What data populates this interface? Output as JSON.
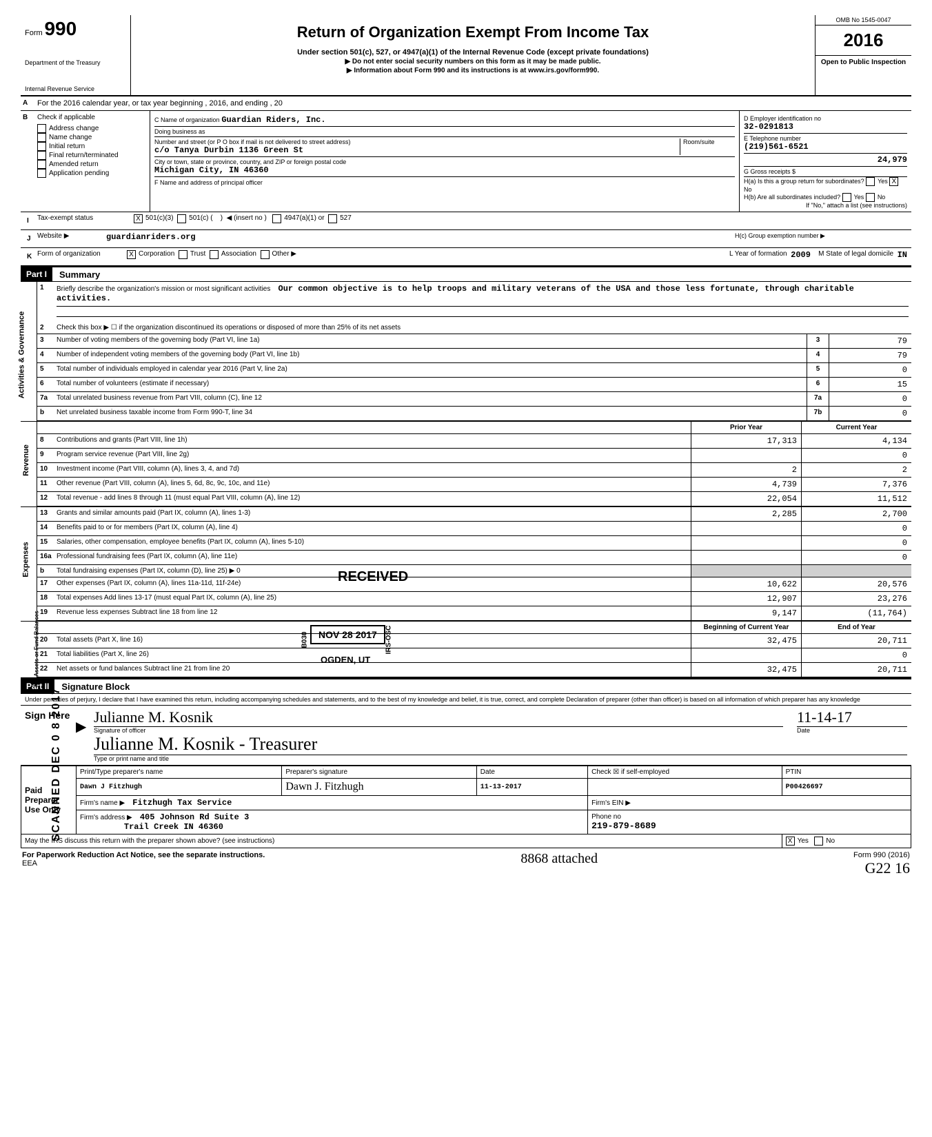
{
  "header": {
    "form_label": "Form",
    "form_number": "990",
    "dept": "Department of the Treasury",
    "irs": "Internal Revenue Service",
    "title": "Return of Organization Exempt From Income Tax",
    "sub1": "Under section 501(c), 527, or 4947(a)(1) of the Internal Revenue Code (except private foundations)",
    "sub2": "▶ Do not enter social security numbers on this form as it may be made public.",
    "sub3": "▶ Information about Form 990 and its instructions is at www.irs.gov/form990.",
    "omb": "OMB No 1545-0047",
    "year": "2016",
    "open": "Open to Public Inspection"
  },
  "line_a": "For the 2016 calendar year, or tax year beginning                                                    , 2016, and ending                               , 20",
  "section_b": {
    "label": "Check if applicable",
    "items": [
      "Address change",
      "Name change",
      "Initial return",
      "Final return/terminated",
      "Amended return",
      "Application pending"
    ]
  },
  "section_c": {
    "name_lbl": "C  Name of organization",
    "name": "Guardian Riders, Inc.",
    "dba_lbl": "Doing business as",
    "addr_lbl": "Number and street (or P O  box if mail is not delivered to street address)",
    "room_lbl": "Room/suite",
    "addr": "c/o Tanya Durbin 1136 Green St",
    "city_lbl": "City or town, state or province, country, and ZIP or foreign postal code",
    "city": "Michigan City, IN 46360",
    "officer_lbl": "F  Name and address of principal officer"
  },
  "section_d": {
    "lbl": "D  Employer identification no",
    "val": "32-0291813",
    "e_lbl": "E  Telephone number",
    "e_val": "(219)561-6521",
    "gross_val": "24,979",
    "g_lbl": "G  Gross receipts $"
  },
  "section_h": {
    "ha": "H(a) Is this a group return for subordinates?",
    "hb": "H(b) Are all subordinates included?",
    "hb_note": "If \"No,\" attach a list (see instructions)",
    "hc": "H(c)  Group exemption number  ▶",
    "yes": "Yes",
    "no": "No"
  },
  "line_i": {
    "lbl": "Tax-exempt status",
    "opt1": "501(c)(3)",
    "opt2": "501(c) (",
    "insert": "◀  (insert no )",
    "opt3": "4947(a)(1) or",
    "opt4": "527"
  },
  "line_j": {
    "lbl": "Website  ▶",
    "val": "guardianriders.org"
  },
  "line_k": {
    "lbl": "Form of organization",
    "opts": [
      "Corporation",
      "Trust",
      "Association",
      "Other ▶"
    ],
    "yof_lbl": "L  Year of formation",
    "yof": "2009",
    "dom_lbl": "M  State of legal domicile",
    "dom": "IN"
  },
  "part1": {
    "bar": "Part I",
    "title": "Summary",
    "mission_lbl": "Briefly describe the organization's mission or most significant activities",
    "mission": "Our common objective is to help troops and military veterans of the USA and those less fortunate, through charitable activities.",
    "line2": "Check this box ▶ ☐ if the organization discontinued its operations or disposed of more than 25% of its net assets",
    "gov_lines": [
      {
        "n": "3",
        "d": "Number of voting members of the governing body (Part VI, line 1a)",
        "b": "3",
        "v": "79"
      },
      {
        "n": "4",
        "d": "Number of independent voting members of the governing body (Part VI, line 1b)",
        "b": "4",
        "v": "79"
      },
      {
        "n": "5",
        "d": "Total number of individuals employed in calendar year 2016 (Part V, line 2a)",
        "b": "5",
        "v": "0"
      },
      {
        "n": "6",
        "d": "Total number of volunteers (estimate if necessary)",
        "b": "6",
        "v": "15"
      },
      {
        "n": "7a",
        "d": "Total unrelated business revenue from Part VIII, column (C), line 12",
        "b": "7a",
        "v": "0"
      },
      {
        "n": "b",
        "d": "Net unrelated business taxable income from Form 990-T, line 34",
        "b": "7b",
        "v": "0"
      }
    ],
    "col_prior": "Prior Year",
    "col_curr": "Current Year",
    "rev_lines": [
      {
        "n": "8",
        "d": "Contributions and grants (Part VIII, line 1h)",
        "p": "17,313",
        "c": "4,134"
      },
      {
        "n": "9",
        "d": "Program service revenue (Part VIII, line 2g)",
        "p": "",
        "c": "0"
      },
      {
        "n": "10",
        "d": "Investment income (Part VIII, column (A), lines 3, 4, and 7d)",
        "p": "2",
        "c": "2"
      },
      {
        "n": "11",
        "d": "Other revenue (Part VIII, column (A), lines 5, 6d, 8c, 9c, 10c, and 11e)",
        "p": "4,739",
        "c": "7,376"
      },
      {
        "n": "12",
        "d": "Total revenue - add lines 8 through 11 (must equal Part VIII, column (A), line 12)",
        "p": "22,054",
        "c": "11,512"
      }
    ],
    "exp_lines": [
      {
        "n": "13",
        "d": "Grants and similar amounts paid (Part IX, column (A), lines 1-3)",
        "p": "2,285",
        "c": "2,700"
      },
      {
        "n": "14",
        "d": "Benefits paid to or for members (Part IX, column (A), line 4)",
        "p": "",
        "c": "0"
      },
      {
        "n": "15",
        "d": "Salaries, other compensation, employee benefits (Part IX, column (A), lines 5-10)",
        "p": "",
        "c": "0"
      },
      {
        "n": "16a",
        "d": "Professional fundraising fees (Part IX, column (A), line 11e)",
        "p": "",
        "c": "0"
      },
      {
        "n": "b",
        "d": "Total fundraising expenses (Part IX, column (D), line 25)  ▶                                     0",
        "p": "",
        "c": "",
        "shade": true
      },
      {
        "n": "17",
        "d": "Other expenses (Part IX, column (A), lines 11a-11d, 11f-24e)",
        "p": "10,622",
        "c": "20,576"
      },
      {
        "n": "18",
        "d": "Total expenses   Add lines 13-17 (must equal Part IX, column (A), line 25)",
        "p": "12,907",
        "c": "23,276"
      },
      {
        "n": "19",
        "d": "Revenue less expenses   Subtract line 18 from line 12",
        "p": "9,147",
        "c": "(11,764)"
      }
    ],
    "col_boy": "Beginning of Current Year",
    "col_eoy": "End of Year",
    "na_lines": [
      {
        "n": "20",
        "d": "Total assets (Part X, line 16)",
        "p": "32,475",
        "c": "20,711"
      },
      {
        "n": "21",
        "d": "Total liabilities (Part X, line 26)",
        "p": "",
        "c": "0"
      },
      {
        "n": "22",
        "d": "Net assets or fund balances   Subtract line 21 from line 20",
        "p": "32,475",
        "c": "20,711"
      }
    ],
    "vside_gov": "Activities & Governance",
    "vside_rev": "Revenue",
    "vside_exp": "Expenses",
    "vside_na": "Net Assets or\nFund Balances"
  },
  "part2": {
    "bar": "Part II",
    "title": "Signature Block",
    "pen": "Under penalties of perjury, I declare that I have examined this return, including accompanying schedules and statements, and to the best of my knowledge and belief, it is true, correct, and complete  Declaration of preparer (other than officer) is based on all information of which preparer has any knowledge",
    "sign_here": "Sign Here",
    "sig_name": "Julianne M. Kosnik",
    "sig_title": "Julianne M. Kosnik - Treasurer",
    "sig_date": "11-14-17",
    "sig_of": "Signature of officer",
    "type_lbl": "Type or print name and title",
    "date_lbl": "Date"
  },
  "paid": {
    "side": "Paid Preparer Use Only",
    "h1": "Print/Type preparer's name",
    "h2": "Preparer's signature",
    "h3": "Date",
    "h4": "Check ☒ if self-employed",
    "h5": "PTIN",
    "name": "Dawn J Fitzhugh",
    "sig": "Dawn J. Fitzhugh",
    "date": "11-13-2017",
    "ptin": "P00426697",
    "firm_lbl": "Firm's name  ▶",
    "firm": "Fitzhugh Tax Service",
    "ein_lbl": "Firm's EIN ▶",
    "addr_lbl": "Firm's address ▶",
    "addr1": "405 Johnson Rd Suite 3",
    "addr2": "Trail Creek IN 46360",
    "phone_lbl": "Phone no",
    "phone": "219-879-8689",
    "discuss": "May the IRS discuss this return with the preparer shown above? (see instructions)",
    "yes": "Yes",
    "no": "No"
  },
  "footer": {
    "pra": "For Paperwork Reduction Act Notice, see the separate instructions.",
    "eea": "EEA",
    "form": "Form 990 (2016)",
    "hand1": "8868 attached",
    "hand2": "G22    16"
  },
  "stamps": {
    "received": "RECEIVED",
    "date": "NOV 28 2017",
    "ogden": "OGDEN, UT",
    "b030": "B030",
    "irsosc": "IRS-OSC",
    "scanned": "SCANNED DEC 0 8 2017"
  }
}
